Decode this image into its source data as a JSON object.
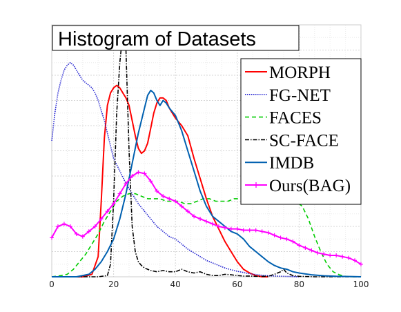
{
  "chart_data": {
    "type": "line",
    "title": "Histogram of Datasets",
    "xlabel": "",
    "ylabel": "",
    "xlim": [
      0,
      100
    ],
    "ylim": [
      0,
      1
    ],
    "x_ticks": [
      0,
      20,
      40,
      60,
      80,
      100
    ],
    "y_ticks_visible": false,
    "grid": true,
    "legend_position": "top-right",
    "series": [
      {
        "name": "MORPH",
        "color": "#ff0000",
        "style": "solid",
        "marker": "none",
        "x": [
          0,
          10,
          13,
          15,
          16,
          17,
          18,
          19,
          20,
          21,
          22,
          23,
          24,
          25,
          26,
          27,
          28,
          29,
          30,
          31,
          32,
          33,
          34,
          35,
          36,
          37,
          38,
          39,
          40,
          42,
          44,
          46,
          48,
          50,
          52,
          54,
          56,
          58,
          60,
          62,
          64,
          66,
          68,
          70
        ],
        "y": [
          0,
          0,
          0.01,
          0.08,
          0.3,
          0.55,
          0.68,
          0.73,
          0.75,
          0.76,
          0.75,
          0.73,
          0.71,
          0.68,
          0.62,
          0.56,
          0.51,
          0.49,
          0.5,
          0.53,
          0.59,
          0.65,
          0.69,
          0.71,
          0.71,
          0.7,
          0.67,
          0.65,
          0.63,
          0.6,
          0.56,
          0.47,
          0.39,
          0.31,
          0.24,
          0.19,
          0.14,
          0.1,
          0.06,
          0.03,
          0.015,
          0.005,
          0,
          0
        ]
      },
      {
        "name": "FG-NET",
        "color": "#2020d0",
        "style": "dotted",
        "marker": "none",
        "x": [
          0,
          1,
          2,
          3,
          4,
          5,
          6,
          7,
          8,
          9,
          10,
          11,
          12,
          13,
          14,
          15,
          16,
          17,
          18,
          19,
          20,
          22,
          24,
          26,
          28,
          30,
          32,
          34,
          36,
          38,
          40,
          42,
          44,
          46,
          48,
          50,
          52,
          54,
          56,
          58,
          60,
          62,
          64,
          66,
          68,
          70,
          75,
          80
        ],
        "y": [
          0.54,
          0.65,
          0.73,
          0.78,
          0.82,
          0.84,
          0.85,
          0.84,
          0.82,
          0.8,
          0.78,
          0.77,
          0.76,
          0.75,
          0.73,
          0.7,
          0.66,
          0.62,
          0.57,
          0.52,
          0.47,
          0.42,
          0.37,
          0.33,
          0.29,
          0.26,
          0.23,
          0.2,
          0.18,
          0.16,
          0.15,
          0.13,
          0.11,
          0.095,
          0.08,
          0.065,
          0.055,
          0.045,
          0.035,
          0.028,
          0.022,
          0.017,
          0.012,
          0.009,
          0.006,
          0.004,
          0.002,
          0
        ]
      },
      {
        "name": "FACES",
        "color": "#00cc00",
        "style": "dashed",
        "marker": "none",
        "x": [
          0,
          3,
          5,
          7,
          9,
          11,
          13,
          15,
          17,
          19,
          21,
          23,
          25,
          27,
          29,
          31,
          33,
          35,
          37,
          39,
          41,
          43,
          45,
          47,
          49,
          51,
          53,
          55,
          57,
          59,
          61,
          63,
          65,
          67,
          69,
          71,
          73,
          75,
          77,
          79,
          81,
          83,
          85,
          87,
          89,
          91,
          93,
          95,
          97,
          99,
          100
        ],
        "y": [
          0,
          0.005,
          0.01,
          0.03,
          0.06,
          0.09,
          0.13,
          0.17,
          0.22,
          0.26,
          0.3,
          0.32,
          0.33,
          0.33,
          0.32,
          0.31,
          0.31,
          0.31,
          0.3,
          0.3,
          0.3,
          0.29,
          0.29,
          0.3,
          0.31,
          0.31,
          0.3,
          0.3,
          0.3,
          0.31,
          0.31,
          0.31,
          0.32,
          0.32,
          0.33,
          0.33,
          0.33,
          0.33,
          0.32,
          0.3,
          0.28,
          0.23,
          0.16,
          0.1,
          0.05,
          0.02,
          0.008,
          0.002,
          0,
          0,
          0
        ]
      },
      {
        "name": "SC-FACE",
        "color": "#000000",
        "style": "dashdot",
        "marker": "none",
        "x": [
          0,
          15,
          18,
          19,
          20,
          21,
          22,
          23,
          24,
          25,
          26,
          27,
          28,
          29,
          30,
          31,
          32,
          34,
          36,
          38,
          40,
          42,
          44,
          46,
          48,
          50,
          52,
          54,
          56,
          58,
          60,
          62,
          64,
          66,
          68,
          70,
          72,
          74,
          75,
          76,
          78,
          80,
          85,
          90,
          100
        ],
        "y": [
          0,
          0,
          0.005,
          0.05,
          0.3,
          0.65,
          0.85,
          0.97,
          0.9,
          0.5,
          0.2,
          0.1,
          0.06,
          0.045,
          0.035,
          0.03,
          0.025,
          0.02,
          0.025,
          0.02,
          0.02,
          0.03,
          0.02,
          0.015,
          0.02,
          0.01,
          0.005,
          0.005,
          0.01,
          0.008,
          0.005,
          0.003,
          0.003,
          0.002,
          0.002,
          0.002,
          0.01,
          0.02,
          0.03,
          0.015,
          0.005,
          0.002,
          0,
          0,
          0
        ]
      },
      {
        "name": "IMDB",
        "color": "#0060b0",
        "style": "solid",
        "marker": "none",
        "x": [
          0,
          8,
          12,
          14,
          16,
          18,
          20,
          22,
          24,
          26,
          28,
          29,
          30,
          31,
          32,
          33,
          34,
          35,
          36,
          37,
          38,
          40,
          42,
          44,
          46,
          48,
          50,
          52,
          54,
          56,
          58,
          60,
          62,
          64,
          66,
          68,
          70,
          72,
          74,
          76,
          78,
          80,
          84,
          88,
          92,
          96,
          100
        ],
        "y": [
          0,
          0,
          0.01,
          0.03,
          0.06,
          0.1,
          0.15,
          0.23,
          0.33,
          0.45,
          0.57,
          0.62,
          0.67,
          0.72,
          0.74,
          0.73,
          0.7,
          0.68,
          0.7,
          0.69,
          0.67,
          0.64,
          0.58,
          0.5,
          0.42,
          0.34,
          0.28,
          0.24,
          0.22,
          0.2,
          0.18,
          0.17,
          0.15,
          0.12,
          0.1,
          0.08,
          0.06,
          0.045,
          0.035,
          0.03,
          0.02,
          0.015,
          0.008,
          0.004,
          0.002,
          0.001,
          0
        ]
      },
      {
        "name": "Ours(BAG)",
        "color": "#ff00ff",
        "style": "solid",
        "marker": "plus",
        "x": [
          0,
          2,
          4,
          6,
          8,
          10,
          12,
          14,
          16,
          18,
          20,
          22,
          24,
          26,
          28,
          30,
          32,
          34,
          36,
          38,
          40,
          42,
          44,
          46,
          48,
          50,
          52,
          54,
          56,
          58,
          60,
          62,
          64,
          66,
          68,
          70,
          72,
          74,
          76,
          78,
          80,
          82,
          84,
          86,
          88,
          90,
          92,
          94,
          96,
          98,
          100
        ],
        "y": [
          0.155,
          0.2,
          0.21,
          0.2,
          0.17,
          0.16,
          0.18,
          0.2,
          0.23,
          0.26,
          0.29,
          0.33,
          0.37,
          0.4,
          0.415,
          0.41,
          0.38,
          0.34,
          0.32,
          0.31,
          0.3,
          0.28,
          0.26,
          0.24,
          0.23,
          0.22,
          0.21,
          0.2,
          0.195,
          0.19,
          0.19,
          0.185,
          0.185,
          0.185,
          0.18,
          0.175,
          0.165,
          0.155,
          0.15,
          0.14,
          0.125,
          0.115,
          0.105,
          0.095,
          0.09,
          0.085,
          0.085,
          0.08,
          0.075,
          0.065,
          0.05
        ]
      }
    ]
  }
}
